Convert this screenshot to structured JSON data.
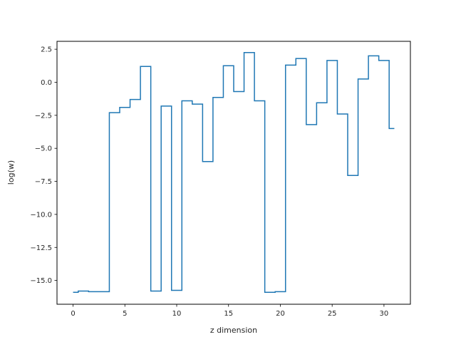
{
  "chart_data": {
    "type": "line",
    "drawstyle": "steps-mid",
    "xlabel": "z dimension",
    "ylabel": "log(w)",
    "xlim": [
      -1.55,
      32.55
    ],
    "ylim": [
      -16.8,
      3.1
    ],
    "x_ticks": [
      0,
      5,
      10,
      15,
      20,
      25,
      30
    ],
    "x_tick_labels": [
      "0",
      "5",
      "10",
      "15",
      "20",
      "25",
      "30"
    ],
    "y_ticks": [
      2.5,
      0.0,
      -2.5,
      -5.0,
      -7.5,
      -10.0,
      -12.5,
      -15.0
    ],
    "y_tick_labels": [
      "2.5",
      "0.0",
      "−2.5",
      "−5.0",
      "−7.5",
      "−10.0",
      "−12.5",
      "−15.0"
    ],
    "grid": false,
    "line_color": "#1f77b4",
    "series": [
      {
        "x": [
          0,
          1,
          2,
          3,
          4,
          5,
          6,
          7,
          8,
          9,
          10,
          11,
          12,
          13,
          14,
          15,
          16,
          17,
          18,
          19,
          20,
          21,
          22,
          23,
          24,
          25,
          26,
          27,
          28,
          29,
          30,
          31
        ],
        "y": [
          -15.9,
          -15.8,
          -15.85,
          -15.85,
          -2.3,
          -1.9,
          -1.3,
          1.2,
          -15.8,
          -1.8,
          -15.75,
          -1.4,
          -1.65,
          -6.0,
          -1.15,
          1.25,
          -0.7,
          2.25,
          -1.4,
          -15.9,
          -15.85,
          1.3,
          1.8,
          -3.2,
          -1.55,
          1.65,
          -2.4,
          -7.05,
          0.25,
          2.0,
          1.65,
          -3.5
        ]
      }
    ]
  }
}
